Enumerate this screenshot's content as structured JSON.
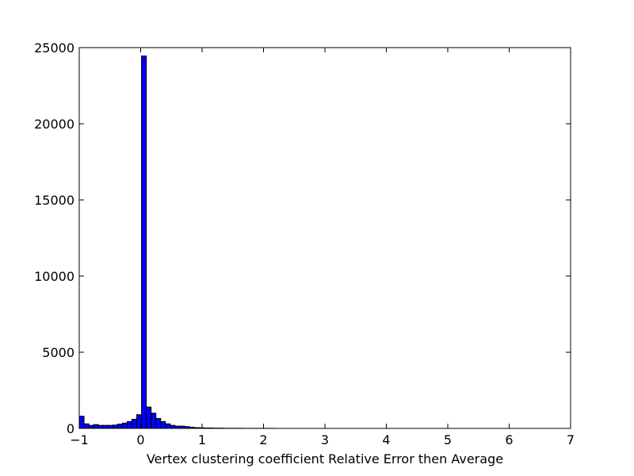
{
  "chart_data": {
    "type": "bar",
    "title": "",
    "xlabel": "Vertex clustering coefficient Relative Error then Average",
    "ylabel": "",
    "xlim": [
      -1,
      7
    ],
    "ylim": [
      0,
      25000
    ],
    "grid": false,
    "legend": "none",
    "bar_color": "#0000ff",
    "edge_color": "#000000",
    "bin_width": 0.078,
    "bins": [
      {
        "x": -1.0,
        "count": 800
      },
      {
        "x": -0.922,
        "count": 300
      },
      {
        "x": -0.844,
        "count": 200
      },
      {
        "x": -0.766,
        "count": 250
      },
      {
        "x": -0.688,
        "count": 200
      },
      {
        "x": -0.61,
        "count": 200
      },
      {
        "x": -0.532,
        "count": 200
      },
      {
        "x": -0.454,
        "count": 220
      },
      {
        "x": -0.376,
        "count": 280
      },
      {
        "x": -0.298,
        "count": 350
      },
      {
        "x": -0.22,
        "count": 450
      },
      {
        "x": -0.142,
        "count": 600
      },
      {
        "x": -0.064,
        "count": 900
      },
      {
        "x": 0.014,
        "count": 24450
      },
      {
        "x": 0.092,
        "count": 1400
      },
      {
        "x": 0.17,
        "count": 1000
      },
      {
        "x": 0.248,
        "count": 650
      },
      {
        "x": 0.326,
        "count": 450
      },
      {
        "x": 0.404,
        "count": 300
      },
      {
        "x": 0.482,
        "count": 200
      },
      {
        "x": 0.56,
        "count": 150
      },
      {
        "x": 0.638,
        "count": 150
      },
      {
        "x": 0.716,
        "count": 120
      },
      {
        "x": 0.794,
        "count": 80
      },
      {
        "x": 0.872,
        "count": 50
      },
      {
        "x": 0.95,
        "count": 40
      },
      {
        "x": 1.028,
        "count": 30
      },
      {
        "x": 1.106,
        "count": 30
      },
      {
        "x": 1.184,
        "count": 20
      },
      {
        "x": 1.262,
        "count": 20
      },
      {
        "x": 1.34,
        "count": 10
      },
      {
        "x": 1.418,
        "count": 10
      },
      {
        "x": 1.496,
        "count": 10
      },
      {
        "x": 1.574,
        "count": 10
      },
      {
        "x": 1.652,
        "count": 5
      },
      {
        "x": 1.73,
        "count": 5
      },
      {
        "x": 1.808,
        "count": 5
      },
      {
        "x": 1.886,
        "count": 5
      },
      {
        "x": 1.964,
        "count": 5
      },
      {
        "x": 2.042,
        "count": 5
      },
      {
        "x": 2.12,
        "count": 5
      }
    ],
    "x_ticks": [
      {
        "value": -1,
        "label": "−1"
      },
      {
        "value": 0,
        "label": "0"
      },
      {
        "value": 1,
        "label": "1"
      },
      {
        "value": 2,
        "label": "2"
      },
      {
        "value": 3,
        "label": "3"
      },
      {
        "value": 4,
        "label": "4"
      },
      {
        "value": 5,
        "label": "5"
      },
      {
        "value": 6,
        "label": "6"
      },
      {
        "value": 7,
        "label": "7"
      }
    ],
    "y_ticks": [
      {
        "value": 0,
        "label": "0"
      },
      {
        "value": 5000,
        "label": "5000"
      },
      {
        "value": 10000,
        "label": "10000"
      },
      {
        "value": 15000,
        "label": "15000"
      },
      {
        "value": 20000,
        "label": "20000"
      },
      {
        "value": 25000,
        "label": "25000"
      }
    ]
  }
}
